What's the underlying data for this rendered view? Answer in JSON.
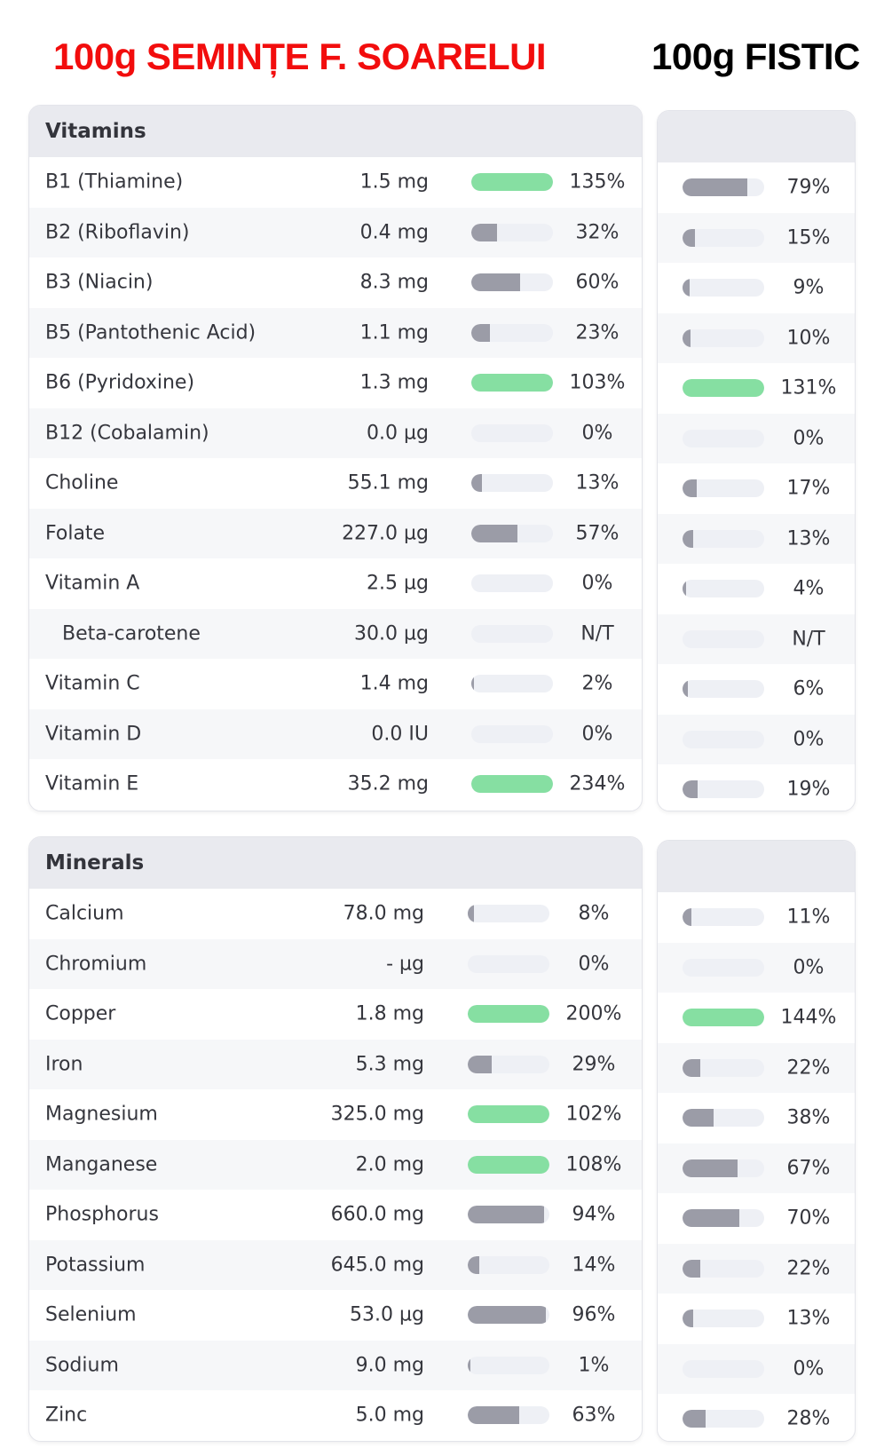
{
  "titles": {
    "left": "100g SEMINȚE F. SOARELUI",
    "right": "100g FISTIC"
  },
  "colors": {
    "title_left": "#f20d0d",
    "title_right": "#000000",
    "bar_high": "#86dfa2",
    "bar_mid": "#9b9ca7",
    "bar_track": "#eef0f5",
    "header_bg": "#e9eaef"
  },
  "vitamins": {
    "header": "Vitamins",
    "rows": [
      {
        "name": "B1 (Thiamine)",
        "amount": "1.5 mg",
        "pct": "135%",
        "fill": 1.0,
        "high": true,
        "r_pct": "79%",
        "r_fill": 0.79,
        "r_high": false
      },
      {
        "name": "B2 (Riboflavin)",
        "amount": "0.4 mg",
        "pct": "32%",
        "fill": 0.32,
        "high": false,
        "r_pct": "15%",
        "r_fill": 0.15,
        "r_high": false
      },
      {
        "name": "B3 (Niacin)",
        "amount": "8.3 mg",
        "pct": "60%",
        "fill": 0.6,
        "high": false,
        "r_pct": "9%",
        "r_fill": 0.09,
        "r_high": false
      },
      {
        "name": "B5 (Pantothenic Acid)",
        "amount": "1.1 mg",
        "pct": "23%",
        "fill": 0.23,
        "high": false,
        "r_pct": "10%",
        "r_fill": 0.1,
        "r_high": false
      },
      {
        "name": "B6 (Pyridoxine)",
        "amount": "1.3 mg",
        "pct": "103%",
        "fill": 1.0,
        "high": true,
        "r_pct": "131%",
        "r_fill": 1.0,
        "r_high": true
      },
      {
        "name": "B12 (Cobalamin)",
        "amount": "0.0 µg",
        "pct": "0%",
        "fill": 0,
        "high": false,
        "r_pct": "0%",
        "r_fill": 0,
        "r_high": false
      },
      {
        "name": "Choline",
        "amount": "55.1 mg",
        "pct": "13%",
        "fill": 0.13,
        "high": false,
        "r_pct": "17%",
        "r_fill": 0.17,
        "r_high": false
      },
      {
        "name": "Folate",
        "amount": "227.0 µg",
        "pct": "57%",
        "fill": 0.57,
        "high": false,
        "r_pct": "13%",
        "r_fill": 0.13,
        "r_high": false
      },
      {
        "name": "Vitamin A",
        "amount": "2.5 µg",
        "pct": "0%",
        "fill": 0,
        "high": false,
        "r_pct": "4%",
        "r_fill": 0.04,
        "r_high": false
      },
      {
        "name": "Beta-carotene",
        "indent": true,
        "amount": "30.0 µg",
        "pct": "N/T",
        "fill": 0,
        "high": false,
        "r_pct": "N/T",
        "r_fill": 0,
        "r_high": false
      },
      {
        "name": "Vitamin C",
        "amount": "1.4 mg",
        "pct": "2%",
        "fill": 0.02,
        "high": false,
        "r_pct": "6%",
        "r_fill": 0.06,
        "r_high": false
      },
      {
        "name": "Vitamin D",
        "amount": "0.0 IU",
        "pct": "0%",
        "fill": 0,
        "high": false,
        "r_pct": "0%",
        "r_fill": 0,
        "r_high": false
      },
      {
        "name": "Vitamin E",
        "amount": "35.2 mg",
        "pct": "234%",
        "fill": 1.0,
        "high": true,
        "r_pct": "19%",
        "r_fill": 0.19,
        "r_high": false
      }
    ]
  },
  "minerals": {
    "header": "Minerals",
    "rows": [
      {
        "name": "Calcium",
        "amount": "78.0 mg",
        "pct": "8%",
        "fill": 0.08,
        "high": false,
        "r_pct": "11%",
        "r_fill": 0.11,
        "r_high": false
      },
      {
        "name": "Chromium",
        "amount": "- µg",
        "pct": "0%",
        "fill": 0,
        "high": false,
        "r_pct": "0%",
        "r_fill": 0,
        "r_high": false
      },
      {
        "name": "Copper",
        "amount": "1.8 mg",
        "pct": "200%",
        "fill": 1.0,
        "high": true,
        "r_pct": "144%",
        "r_fill": 1.0,
        "r_high": true
      },
      {
        "name": "Iron",
        "amount": "5.3 mg",
        "pct": "29%",
        "fill": 0.29,
        "high": false,
        "r_pct": "22%",
        "r_fill": 0.22,
        "r_high": false
      },
      {
        "name": "Magnesium",
        "amount": "325.0 mg",
        "pct": "102%",
        "fill": 1.0,
        "high": true,
        "r_pct": "38%",
        "r_fill": 0.38,
        "r_high": false
      },
      {
        "name": "Manganese",
        "amount": "2.0 mg",
        "pct": "108%",
        "fill": 1.0,
        "high": true,
        "r_pct": "67%",
        "r_fill": 0.67,
        "r_high": false
      },
      {
        "name": "Phosphorus",
        "amount": "660.0 mg",
        "pct": "94%",
        "fill": 0.94,
        "high": false,
        "r_pct": "70%",
        "r_fill": 0.7,
        "r_high": false
      },
      {
        "name": "Potassium",
        "amount": "645.0 mg",
        "pct": "14%",
        "fill": 0.14,
        "high": false,
        "r_pct": "22%",
        "r_fill": 0.22,
        "r_high": false
      },
      {
        "name": "Selenium",
        "amount": "53.0 µg",
        "pct": "96%",
        "fill": 0.96,
        "high": false,
        "r_pct": "13%",
        "r_fill": 0.13,
        "r_high": false
      },
      {
        "name": "Sodium",
        "amount": "9.0 mg",
        "pct": "1%",
        "fill": 0.01,
        "high": false,
        "r_pct": "0%",
        "r_fill": 0,
        "r_high": false
      },
      {
        "name": "Zinc",
        "amount": "5.0 mg",
        "pct": "63%",
        "fill": 0.63,
        "high": false,
        "r_pct": "28%",
        "r_fill": 0.28,
        "r_high": false
      }
    ]
  }
}
